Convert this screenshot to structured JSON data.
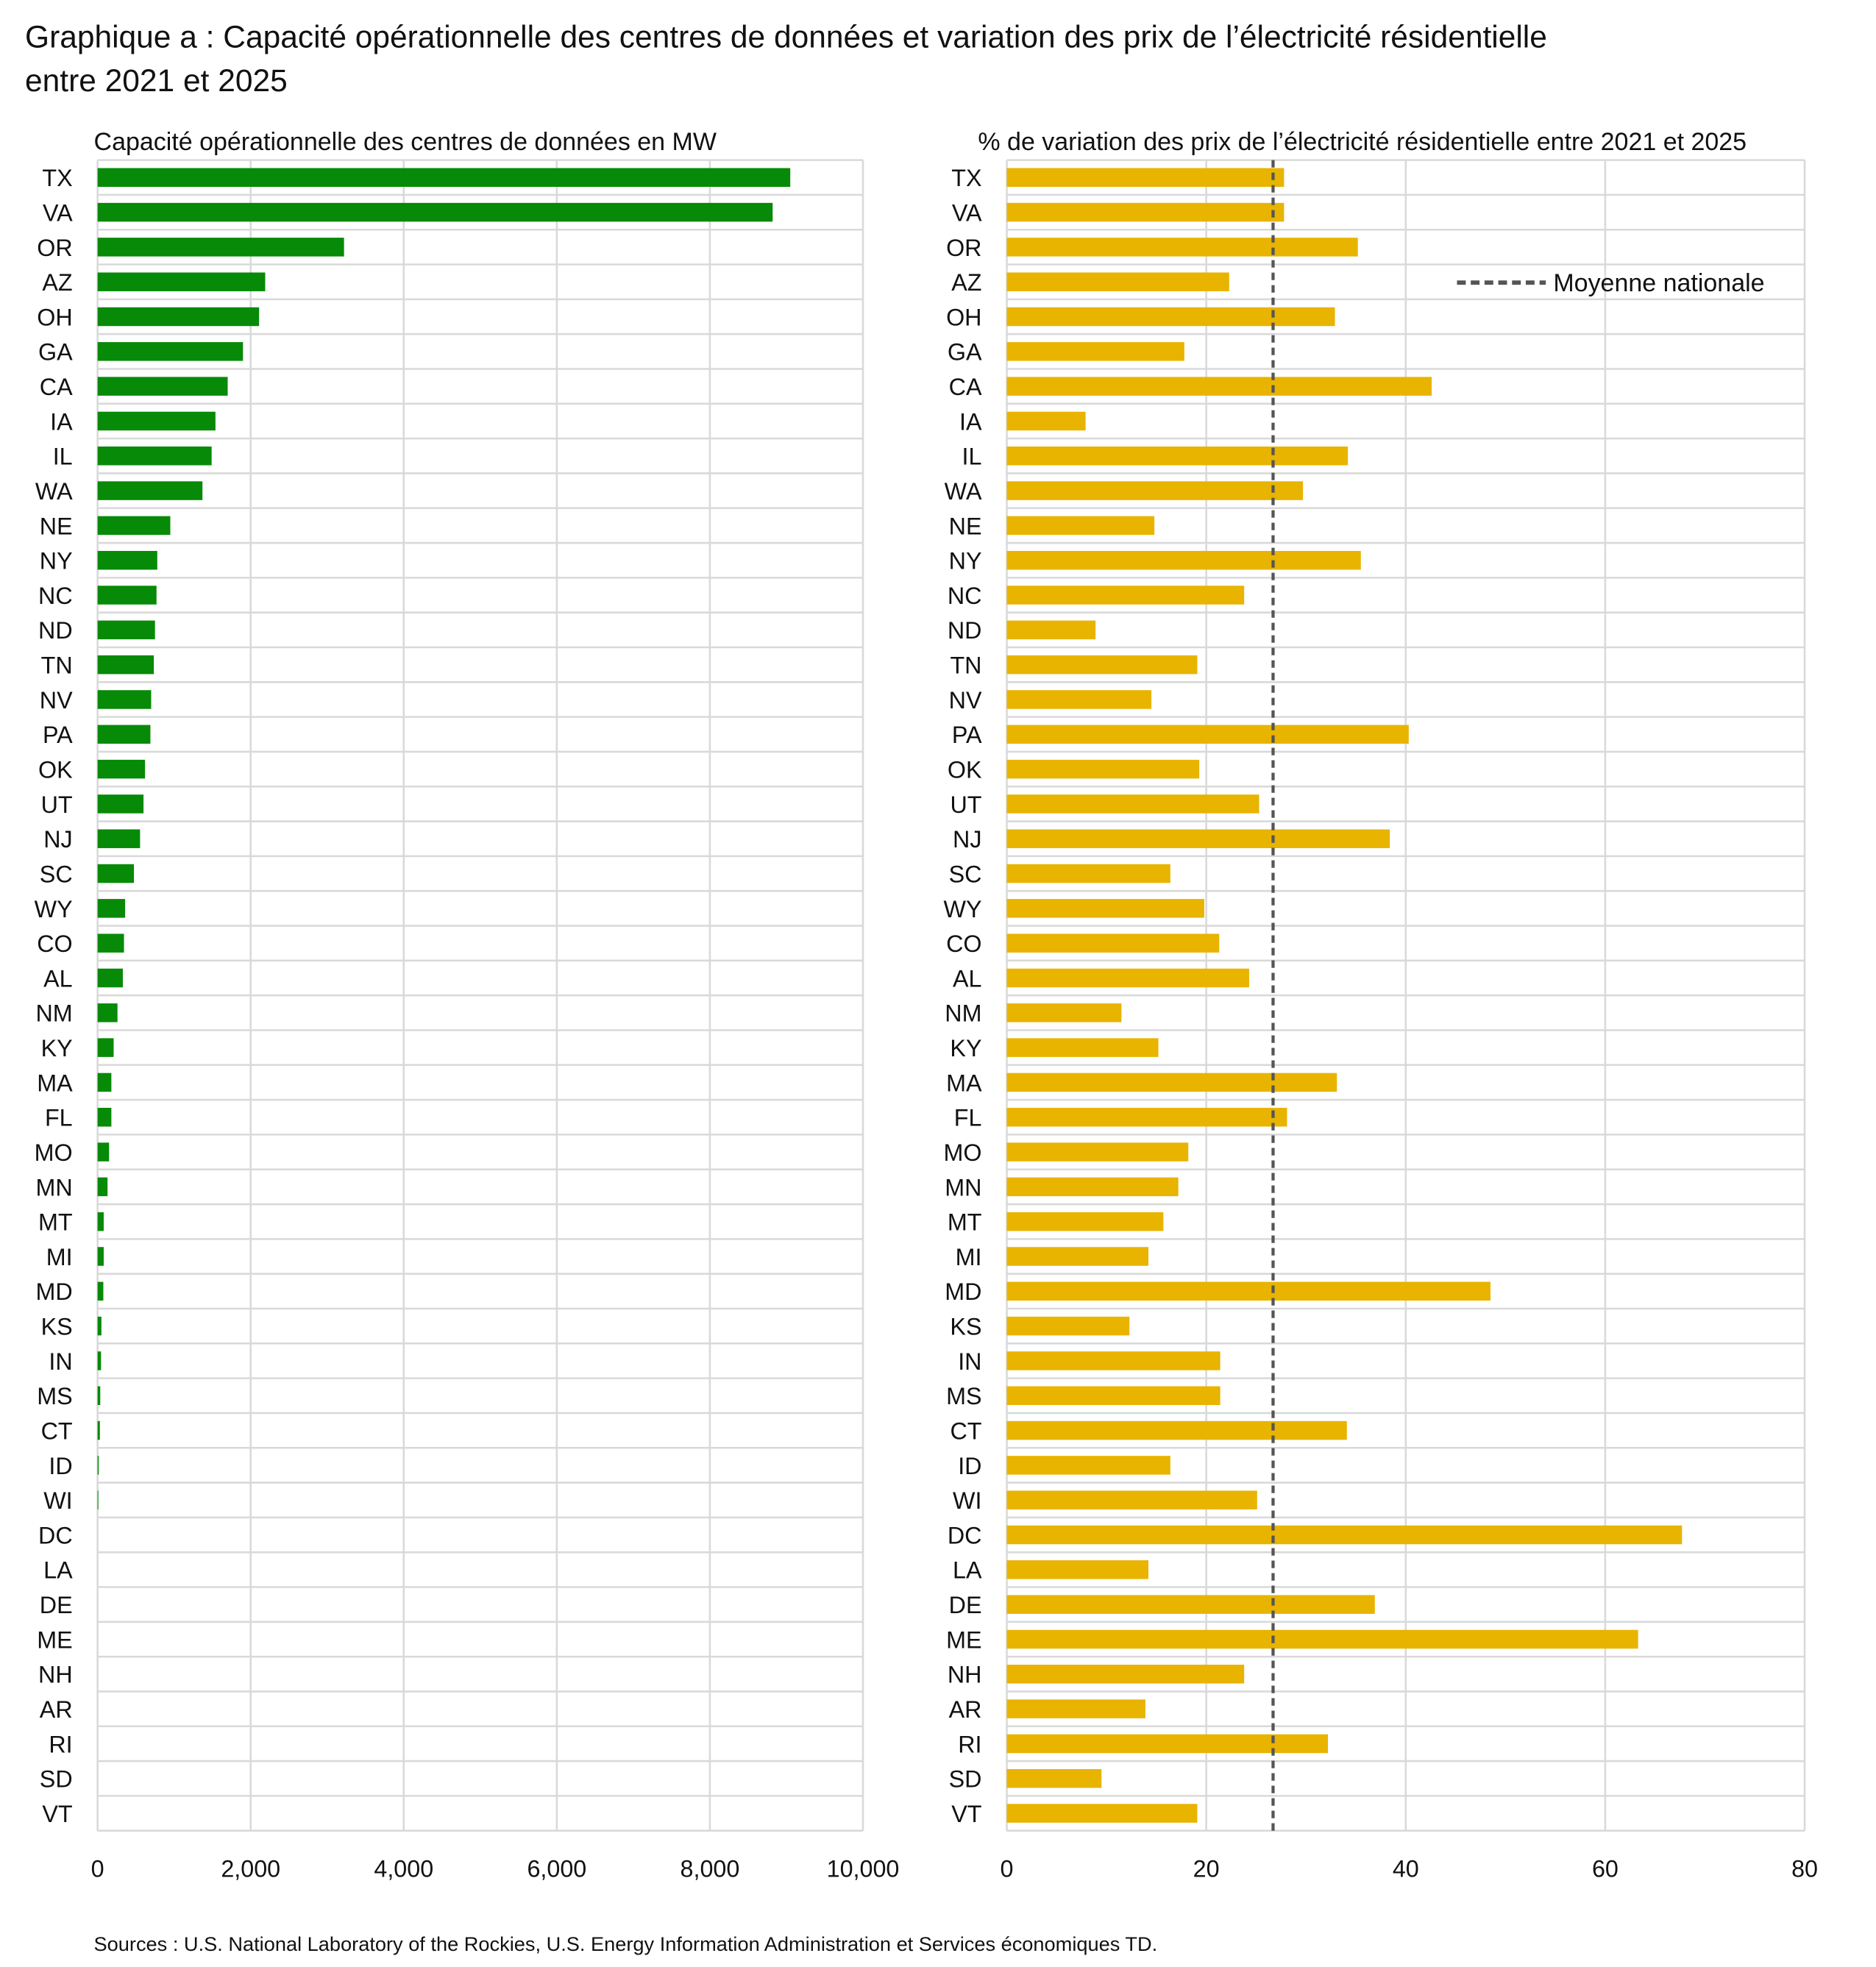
{
  "title_line1": "Graphique a : Capacité opérationnelle des centres de données et variation des prix de l’électricité résidentielle",
  "title_line2": "entre 2021 et 2025",
  "source": "Sources : U.S. National Laboratory of the Rockies, U.S. Energy Information Administration et Services économiques TD.",
  "chart_data": [
    {
      "type": "bar",
      "orientation": "horizontal",
      "title": "Capacité opérationnelle des centres de données en MW",
      "categories": [
        "TX",
        "VA",
        "OR",
        "AZ",
        "OH",
        "GA",
        "CA",
        "IA",
        "IL",
        "WA",
        "NE",
        "NY",
        "NC",
        "ND",
        "TN",
        "NV",
        "PA",
        "OK",
        "UT",
        "NJ",
        "SC",
        "WY",
        "CO",
        "AL",
        "NM",
        "KY",
        "MA",
        "FL",
        "MO",
        "MN",
        "MT",
        "MI",
        "MD",
        "KS",
        "IN",
        "MS",
        "CT",
        "ID",
        "WI",
        "DC",
        "LA",
        "DE",
        "ME",
        "NH",
        "AR",
        "RI",
        "SD",
        "VT"
      ],
      "values": [
        9050,
        8820,
        3220,
        2190,
        2110,
        1900,
        1700,
        1540,
        1490,
        1370,
        950,
        780,
        770,
        750,
        735,
        700,
        690,
        620,
        600,
        555,
        475,
        360,
        345,
        330,
        260,
        210,
        180,
        180,
        150,
        130,
        80,
        80,
        75,
        50,
        45,
        35,
        30,
        15,
        10,
        0,
        0,
        0,
        0,
        0,
        0,
        0,
        0,
        0
      ],
      "xlim": [
        0,
        10000
      ],
      "xticks": [
        "0",
        "2,000",
        "4,000",
        "6,000",
        "8,000",
        "10,000"
      ],
      "color": "#078a07",
      "grid": true
    },
    {
      "type": "bar",
      "orientation": "horizontal",
      "title": "% de variation des prix de l’électricité résidentielle entre 2021 et 2025",
      "categories": [
        "TX",
        "VA",
        "OR",
        "AZ",
        "OH",
        "GA",
        "CA",
        "IA",
        "IL",
        "WA",
        "NE",
        "NY",
        "NC",
        "ND",
        "TN",
        "NV",
        "PA",
        "OK",
        "UT",
        "NJ",
        "SC",
        "WY",
        "CO",
        "AL",
        "NM",
        "KY",
        "MA",
        "FL",
        "MO",
        "MN",
        "MT",
        "MI",
        "MD",
        "KS",
        "IN",
        "MS",
        "CT",
        "ID",
        "WI",
        "DC",
        "LA",
        "DE",
        "ME",
        "NH",
        "AR",
        "RI",
        "SD",
        "VT"
      ],
      "values": [
        27.8,
        27.8,
        35.2,
        22.3,
        32.9,
        17.8,
        42.6,
        7.9,
        34.2,
        29.7,
        14.8,
        35.5,
        23.8,
        8.9,
        19.1,
        14.5,
        40.3,
        19.3,
        25.3,
        38.4,
        16.4,
        19.8,
        21.3,
        24.3,
        11.5,
        15.2,
        33.1,
        28.1,
        18.2,
        17.2,
        15.7,
        14.2,
        48.5,
        12.3,
        21.4,
        21.4,
        34.1,
        16.4,
        25.1,
        67.7,
        14.2,
        36.9,
        63.3,
        23.8,
        13.9,
        32.2,
        9.5,
        19.1
      ],
      "xlim": [
        0,
        80
      ],
      "xticks": [
        "0",
        "20",
        "40",
        "60",
        "80"
      ],
      "color": "#e8b400",
      "reference_line": {
        "label": "Moyenne nationale",
        "value": 26.7,
        "style": "dashed",
        "color": "#555555"
      },
      "legend": "top-right",
      "grid": true
    }
  ]
}
